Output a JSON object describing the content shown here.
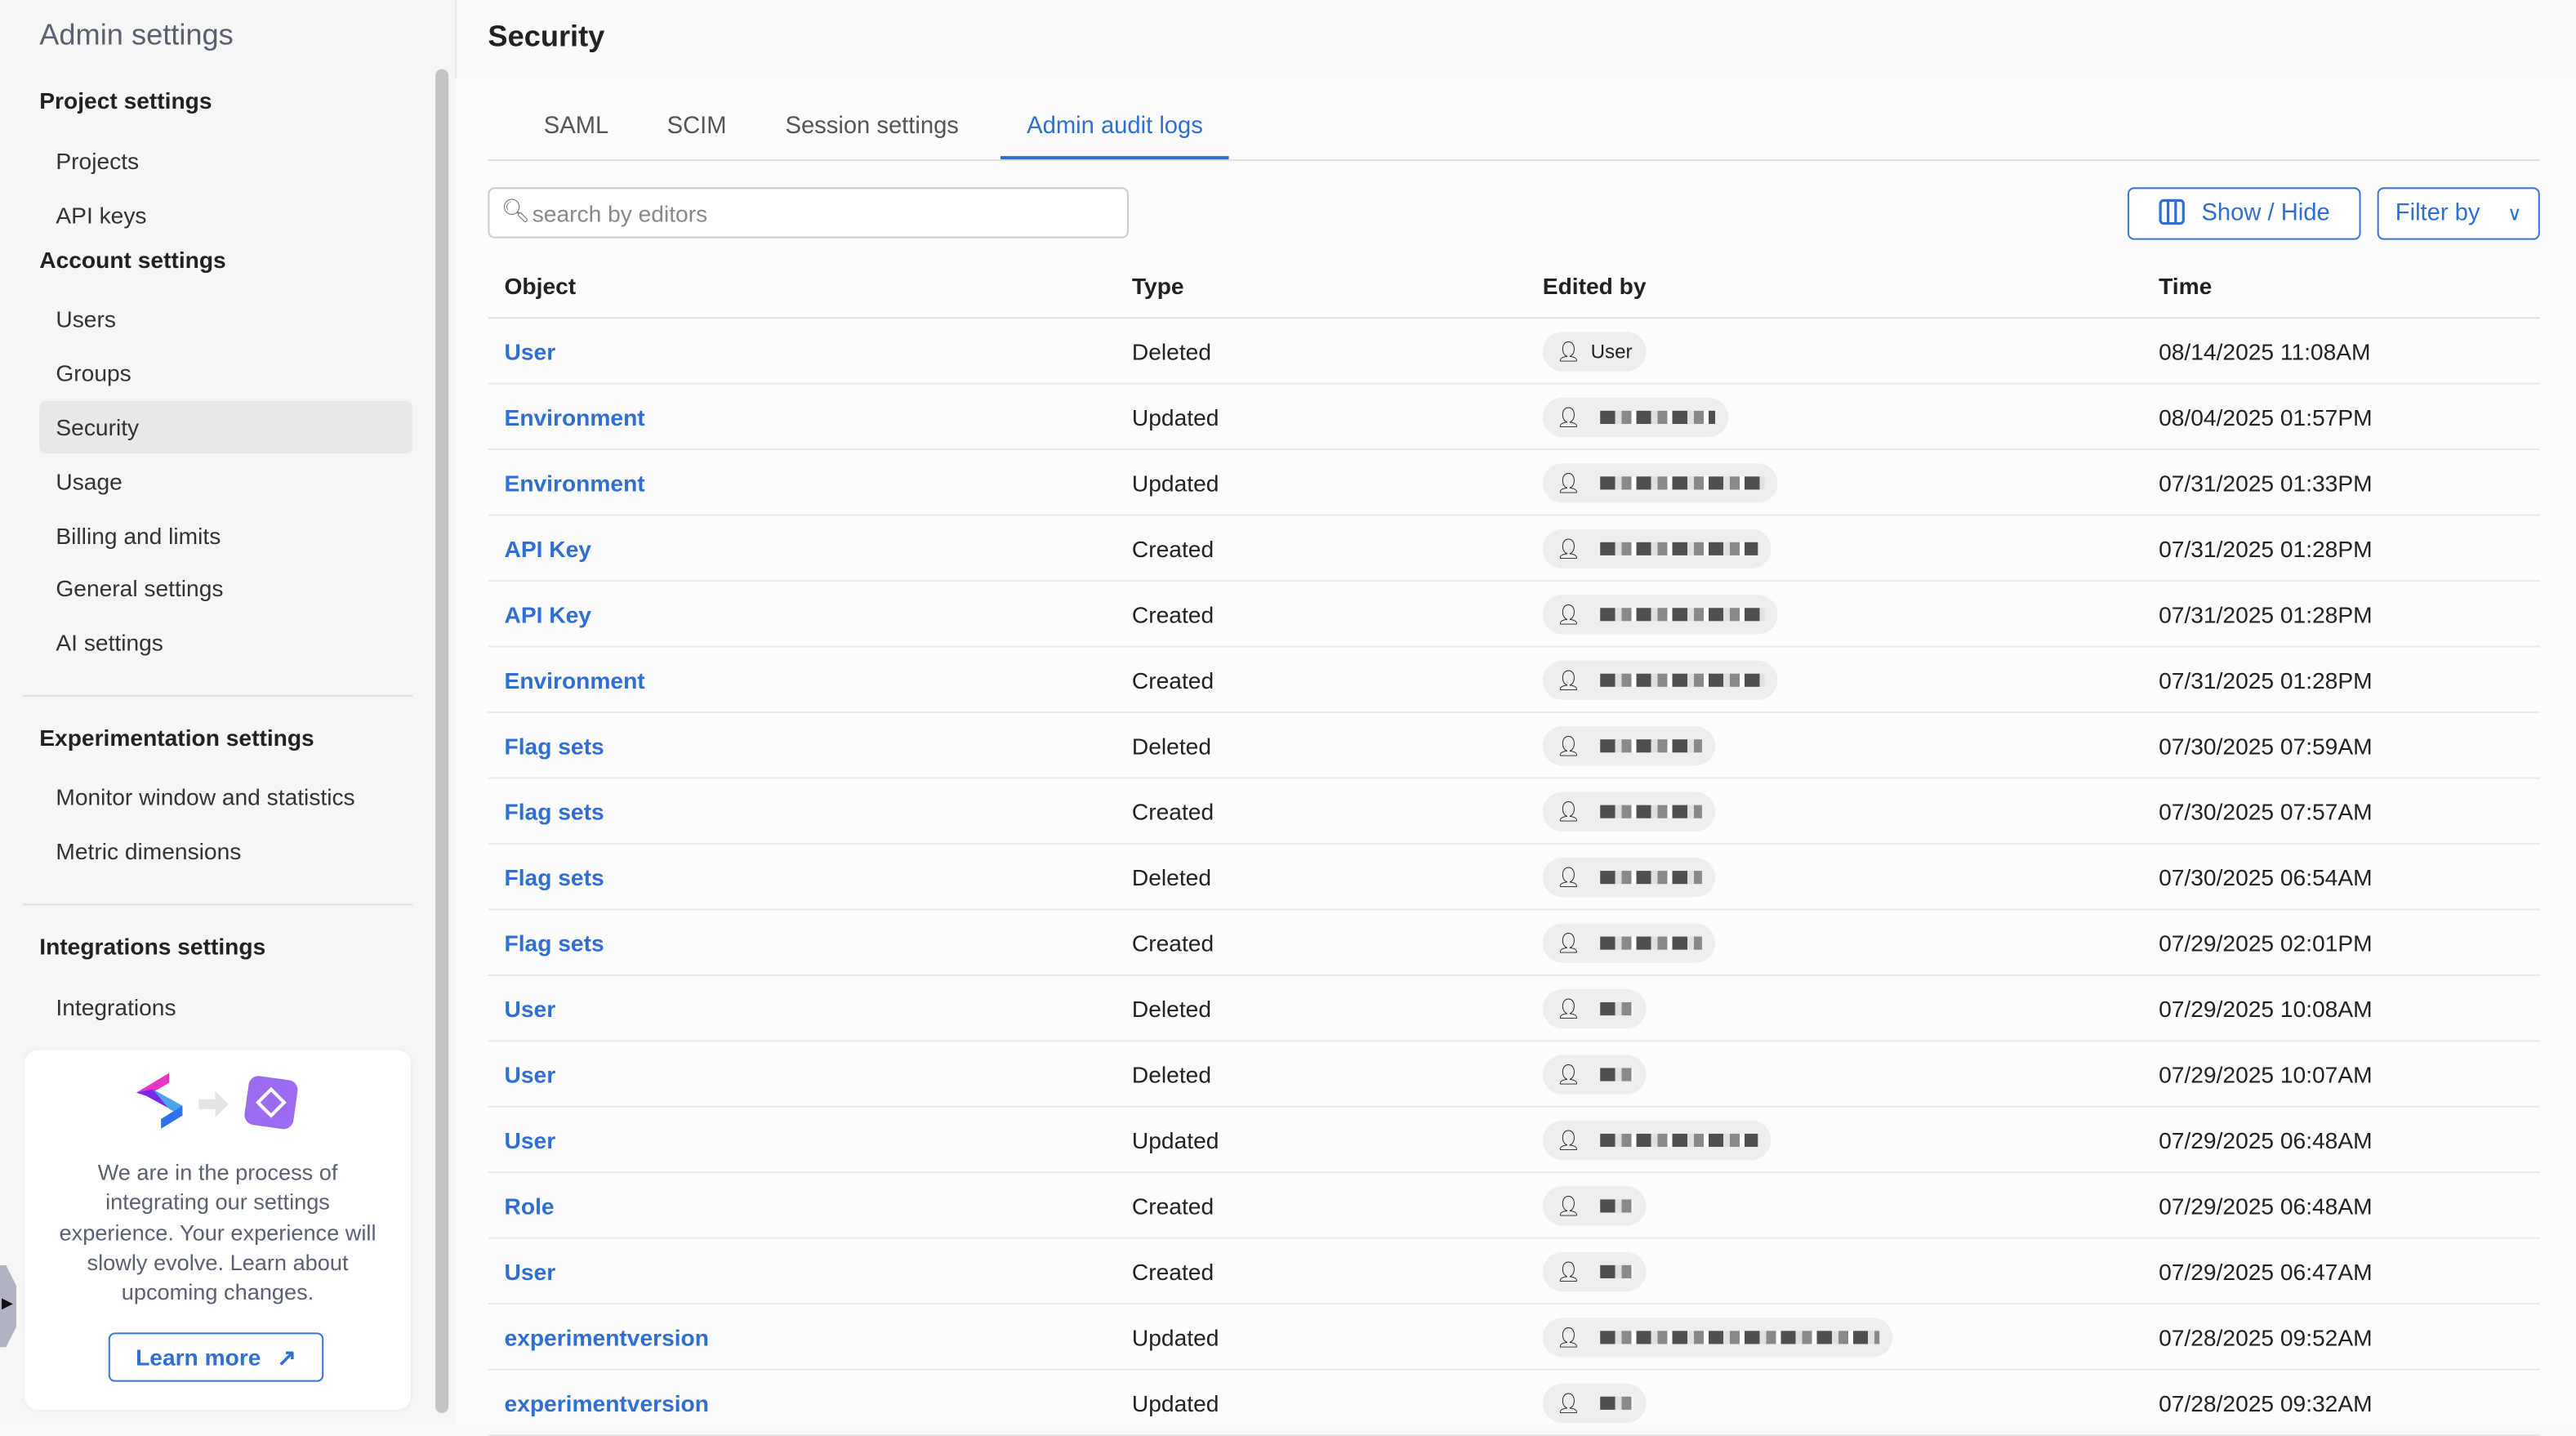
{
  "sidebar": {
    "title": "Admin settings",
    "sections": [
      {
        "label": "Project settings",
        "items": [
          "Projects",
          "API keys"
        ]
      },
      {
        "label": "Account settings",
        "items": [
          "Users",
          "Groups",
          "Security",
          "Usage",
          "Billing and limits",
          "General settings",
          "AI settings"
        ]
      },
      {
        "label": "Experimentation settings",
        "items": [
          "Monitor window and statistics",
          "Metric dimensions"
        ]
      },
      {
        "label": "Integrations settings",
        "items": [
          "Integrations"
        ]
      }
    ],
    "active_item": "Security",
    "card": {
      "text": "We are in the process of integrating our settings experience. Your experience will slowly evolve. Learn about upcoming changes.",
      "button": "Learn more"
    }
  },
  "main": {
    "title": "Security",
    "tabs": [
      "SAML",
      "SCIM",
      "Session settings",
      "Admin audit logs"
    ],
    "active_tab": "Admin audit logs",
    "search_placeholder": "search by editors",
    "show_hide": "Show / Hide",
    "filter_by": "Filter by",
    "columns": [
      "Object",
      "Type",
      "Edited by",
      "Time"
    ],
    "rows": [
      {
        "object": "User",
        "type": "Deleted",
        "editor": "User",
        "time": "08/14/2025 11:08AM"
      },
      {
        "object": "Environment",
        "type": "Updated",
        "editor": "",
        "time": "08/04/2025 01:57PM"
      },
      {
        "object": "Environment",
        "type": "Updated",
        "editor": "",
        "time": "07/31/2025 01:33PM"
      },
      {
        "object": "API Key",
        "type": "Created",
        "editor": "",
        "time": "07/31/2025 01:28PM"
      },
      {
        "object": "API Key",
        "type": "Created",
        "editor": "",
        "time": "07/31/2025 01:28PM"
      },
      {
        "object": "Environment",
        "type": "Created",
        "editor": "",
        "time": "07/31/2025 01:28PM"
      },
      {
        "object": "Flag sets",
        "type": "Deleted",
        "editor": "",
        "time": "07/30/2025 07:59AM"
      },
      {
        "object": "Flag sets",
        "type": "Created",
        "editor": "",
        "time": "07/30/2025 07:57AM"
      },
      {
        "object": "Flag sets",
        "type": "Deleted",
        "editor": "",
        "time": "07/30/2025 06:54AM"
      },
      {
        "object": "Flag sets",
        "type": "Created",
        "editor": "",
        "time": "07/29/2025 02:01PM"
      },
      {
        "object": "User",
        "type": "Deleted",
        "editor": "",
        "time": "07/29/2025 10:08AM"
      },
      {
        "object": "User",
        "type": "Deleted",
        "editor": "",
        "time": "07/29/2025 10:07AM"
      },
      {
        "object": "User",
        "type": "Updated",
        "editor": "",
        "time": "07/29/2025 06:48AM"
      },
      {
        "object": "Role",
        "type": "Created",
        "editor": "",
        "time": "07/29/2025 06:48AM"
      },
      {
        "object": "User",
        "type": "Created",
        "editor": "",
        "time": "07/29/2025 06:47AM"
      },
      {
        "object": "experimentversion",
        "type": "Updated",
        "editor": "",
        "time": "07/28/2025 09:52AM"
      },
      {
        "object": "experimentversion",
        "type": "Updated",
        "editor": "",
        "time": "07/28/2025 09:32AM"
      }
    ]
  },
  "colors": {
    "accent": "#2f6fd4"
  }
}
